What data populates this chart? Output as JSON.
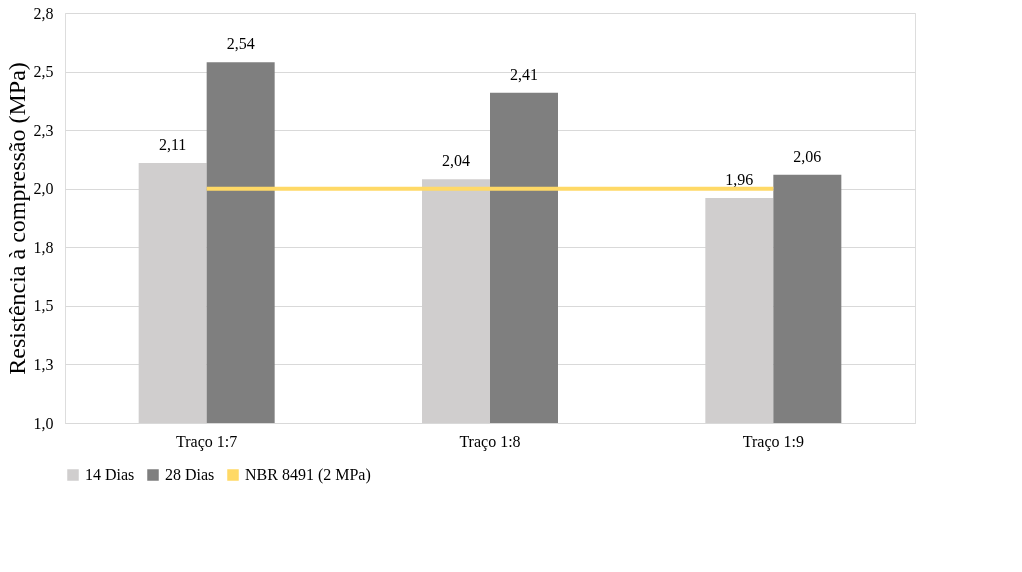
{
  "chart_data": {
    "type": "bar",
    "ylabel": "Resistência à compressão (MPa)",
    "categories": [
      "Traço 1:7",
      "Traço 1:8",
      "Traço 1:9"
    ],
    "series": [
      {
        "name": "14 Dias",
        "color": "#d0cece",
        "values": [
          2.11,
          2.04,
          1.96
        ],
        "value_labels": [
          "2,11",
          "2,04",
          "1,96"
        ]
      },
      {
        "name": "28 Dias",
        "color": "#7f7f7f",
        "values": [
          2.54,
          2.41,
          2.06
        ],
        "value_labels": [
          "2,54",
          "2,41",
          "2,06"
        ]
      },
      {
        "name": "NBR 8491 (2 MPa)",
        "type": "line",
        "color": "#ffd966",
        "values": [
          2.0,
          2.0,
          2.0
        ]
      }
    ],
    "ylim": [
      1.0,
      2.75
    ],
    "yticks": [
      {
        "value": 1.0,
        "label": "1,0"
      },
      {
        "value": 1.25,
        "label": "1,3"
      },
      {
        "value": 1.5,
        "label": "1,5"
      },
      {
        "value": 1.75,
        "label": "1,8"
      },
      {
        "value": 2.0,
        "label": "2,0"
      },
      {
        "value": 2.25,
        "label": "2,3"
      },
      {
        "value": 2.5,
        "label": "2,5"
      },
      {
        "value": 2.75,
        "label": "2,8"
      }
    ],
    "grid": "y",
    "legend": "bottom",
    "marker": "none"
  }
}
